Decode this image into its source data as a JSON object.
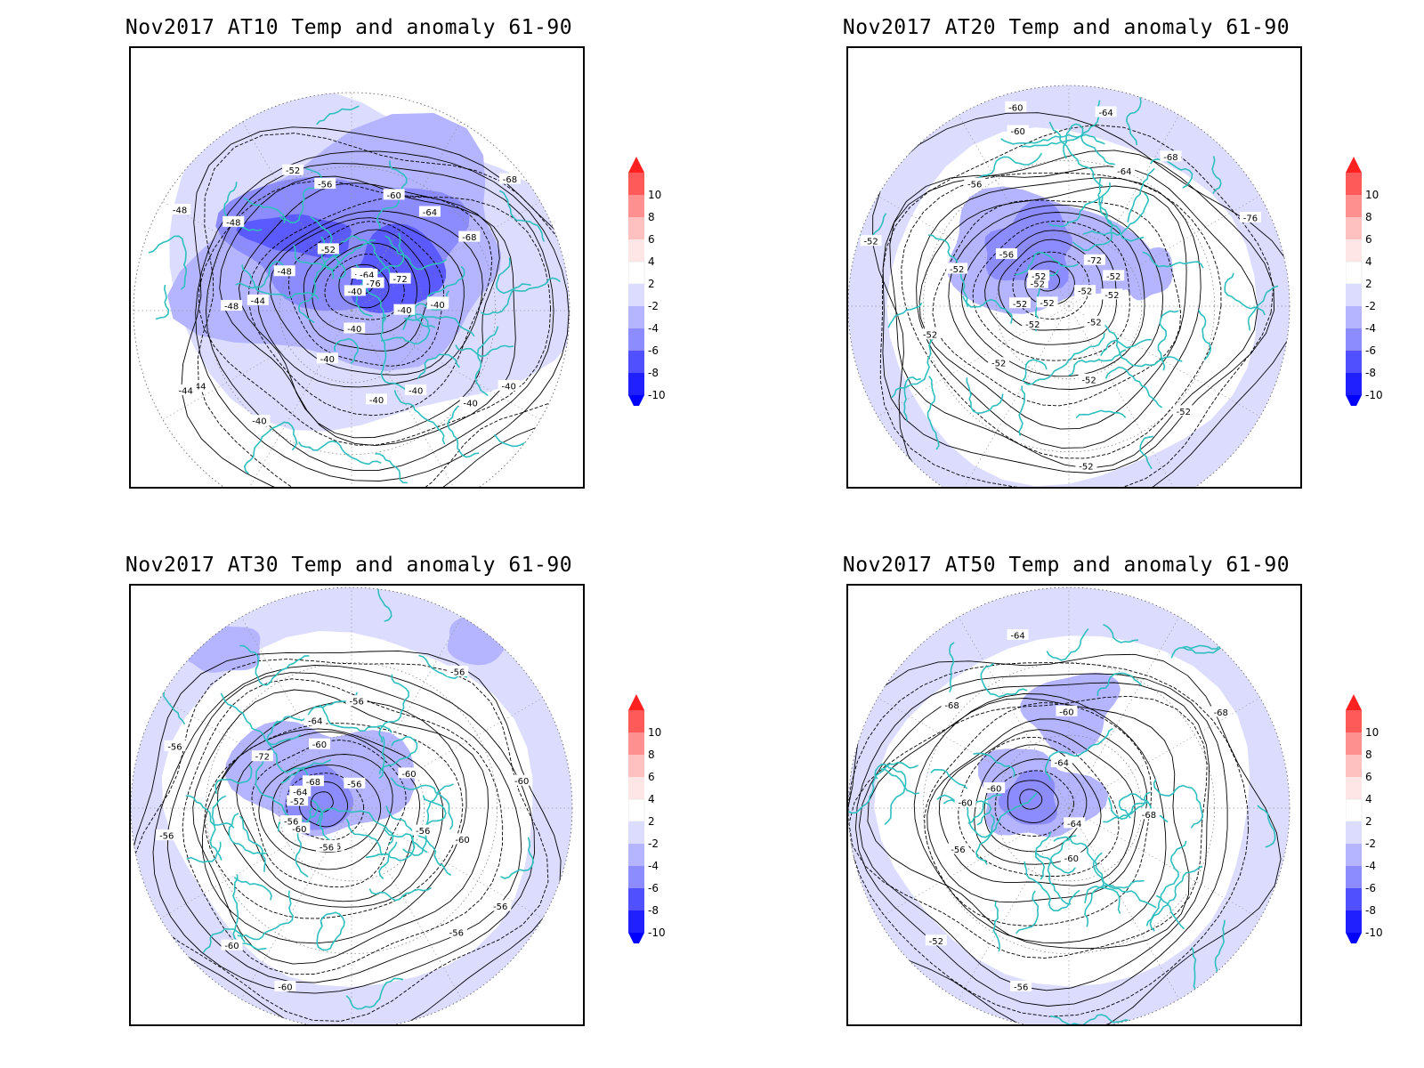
{
  "panels": [
    {
      "title": "Nov2017 AT10 Temp and anomaly 61-90",
      "contour_labels": [
        "-40",
        "-40",
        "-40",
        "-40",
        "-40",
        "-40",
        "-40",
        "-40",
        "-40",
        "-40",
        "-40",
        "-44",
        "-44",
        "-44",
        "-48",
        "-48",
        "-48",
        "-48",
        "-52",
        "-52",
        "-56",
        "-56",
        "-60",
        "-60",
        "-64",
        "-64",
        "-68",
        "-68",
        "-72",
        "-76"
      ]
    },
    {
      "title": "Nov2017 AT20 Temp and anomaly 61-90",
      "contour_labels": [
        "-52",
        "-52",
        "-52",
        "-52",
        "-52",
        "-52",
        "-52",
        "-52",
        "-52",
        "-52",
        "-52",
        "-52",
        "-52",
        "-52",
        "-52",
        "-56",
        "-56",
        "-60",
        "-60",
        "-64",
        "-64",
        "-68",
        "-72",
        "-76",
        "-52"
      ]
    },
    {
      "title": "Nov2017 AT30 Temp and anomaly 61-90",
      "contour_labels": [
        "-60",
        "-56",
        "-56",
        "-56",
        "-56",
        "-56",
        "-60",
        "-60",
        "-60",
        "-56",
        "-56",
        "-52",
        "-56",
        "-64",
        "-72",
        "-68",
        "-64",
        "-60",
        "-56",
        "-56",
        "-56",
        "-60",
        "-60"
      ]
    },
    {
      "title": "Nov2017 AT50 Temp and anomaly 61-90",
      "contour_labels": [
        "-68",
        "-64",
        "-60",
        "-56",
        "-52",
        "-56",
        "-60",
        "-60",
        "-68",
        "-64",
        "-60",
        "-64",
        "-68"
      ]
    }
  ],
  "colorbar": {
    "labels": [
      "10",
      "8",
      "6",
      "4",
      "2",
      "-2",
      "-4",
      "-6",
      "-8",
      "-10"
    ],
    "colors": [
      "#ff2020",
      "#ff5a5a",
      "#ff9090",
      "#ffc0c0",
      "#ffe6e6",
      "#ffffff",
      "#dcdcff",
      "#b4b4ff",
      "#8c8cff",
      "#5050ff",
      "#2020ff",
      "#0000ff"
    ]
  },
  "colors": {
    "coast": "#2fbfbf",
    "anomaly_light": "#dcdcff",
    "anomaly_mid": "#b4b4ff",
    "anomaly_strong": "#8c8cff",
    "anomaly_deep": "#5a5aff",
    "contour": "#000000"
  }
}
